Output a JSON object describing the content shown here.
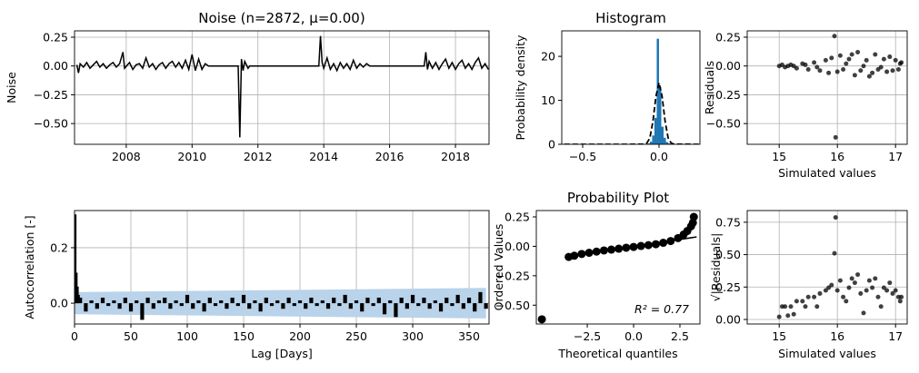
{
  "chart_data": [
    {
      "type": "line",
      "title": "Noise (n=2872, μ=0.00)",
      "ylabel": "Noise",
      "color": "#000000",
      "grid": true,
      "xlim": [
        2006.43,
        2019.02
      ],
      "ylim": [
        -0.68,
        0.305
      ],
      "xticks": [
        2008,
        2010,
        2012,
        2014,
        2016,
        2018
      ],
      "yticks": [
        0.25,
        {
          "value": 0,
          "label": "0.00"
        },
        {
          "value": -0.25,
          "label": "−0.25"
        },
        {
          "value": -0.5,
          "label": "−0.50"
        }
      ],
      "x": [
        2006.5,
        2006.55,
        2006.6,
        2006.7,
        2006.8,
        2006.9,
        2007.0,
        2007.1,
        2007.2,
        2007.3,
        2007.4,
        2007.5,
        2007.6,
        2007.7,
        2007.8,
        2007.9,
        2007.95,
        2008.1,
        2008.2,
        2008.3,
        2008.4,
        2008.5,
        2008.6,
        2008.7,
        2008.8,
        2008.9,
        2009.0,
        2009.1,
        2009.2,
        2009.3,
        2009.4,
        2009.5,
        2009.6,
        2009.7,
        2009.8,
        2009.9,
        2010.0,
        2010.1,
        2010.2,
        2010.3,
        2010.4,
        2010.5,
        2011.4,
        2011.45,
        2011.5,
        2011.55,
        2011.6,
        2011.7,
        2011.75,
        2013.85,
        2013.9,
        2013.95,
        2014.0,
        2014.1,
        2014.2,
        2014.3,
        2014.4,
        2014.5,
        2014.6,
        2014.7,
        2014.8,
        2014.9,
        2015.0,
        2015.1,
        2015.2,
        2015.3,
        2015.4,
        2017.05,
        2017.1,
        2017.15,
        2017.2,
        2017.3,
        2017.4,
        2017.5,
        2017.6,
        2017.7,
        2017.8,
        2017.9,
        2018.0,
        2018.1,
        2018.2,
        2018.3,
        2018.4,
        2018.5,
        2018.6,
        2018.7,
        2018.8,
        2018.9,
        2019.0
      ],
      "values": [
        0.01,
        -0.06,
        0.02,
        -0.01,
        0.03,
        -0.02,
        0.01,
        0.04,
        -0.01,
        0.02,
        -0.02,
        0.01,
        0.03,
        -0.01,
        0.02,
        0.12,
        -0.02,
        0.03,
        -0.03,
        0.01,
        0.02,
        -0.02,
        0.07,
        -0.01,
        0.02,
        -0.03,
        0.01,
        0.03,
        -0.02,
        0.02,
        0.04,
        -0.01,
        0.03,
        -0.02,
        0.05,
        -0.03,
        0.1,
        -0.04,
        0.06,
        -0.03,
        0.02,
        0,
        0,
        -0.62,
        0.06,
        -0.04,
        0.04,
        -0.02,
        0,
        0,
        0.26,
        0.03,
        -0.02,
        0.07,
        -0.03,
        0.02,
        -0.04,
        0.03,
        -0.02,
        0.02,
        -0.03,
        0.05,
        -0.02,
        0.02,
        -0.01,
        0.02,
        0,
        0,
        0.12,
        -0.03,
        0.04,
        -0.02,
        0.03,
        -0.03,
        0.02,
        0.06,
        -0.02,
        0.03,
        -0.03,
        0.02,
        0.05,
        -0.02,
        0.02,
        -0.03,
        0.03,
        0.07,
        -0.02,
        0.02,
        -0.03
      ]
    },
    {
      "type": "histogram",
      "title": "Histogram",
      "ylabel": "Probability density",
      "color": "#1f77b4",
      "grid": false,
      "xlim": [
        -0.637,
        0.268
      ],
      "ylim": [
        0,
        25.8
      ],
      "xticks": [
        {
          "value": -0.5,
          "label": "−0.5"
        },
        {
          "value": 0,
          "label": "0.0"
        }
      ],
      "yticks": [
        0,
        10,
        20
      ],
      "bins": [
        -0.075,
        -0.06,
        -0.045,
        -0.03,
        -0.015,
        0,
        0.015,
        0.03,
        0.045,
        0.06,
        0.075
      ],
      "values": [
        0.2,
        0.6,
        2,
        6,
        24,
        13,
        4,
        1.5,
        0.5,
        0.2
      ],
      "curve": {
        "color": "#000000",
        "x": [
          -0.62,
          -0.2,
          -0.1,
          -0.08,
          -0.06,
          -0.04,
          -0.02,
          0,
          0.02,
          0.04,
          0.06,
          0.08,
          0.1,
          0.26
        ],
        "values": [
          0,
          0,
          0.03,
          0.27,
          1.4,
          5.2,
          10.9,
          14,
          10.9,
          5.2,
          1.4,
          0.27,
          0.03,
          0
        ]
      }
    },
    {
      "type": "scatter",
      "xlabel": "Simulated values",
      "ylabel": "Residuals",
      "color": "#000000",
      "grid": true,
      "xlim": [
        14.45,
        17.2
      ],
      "ylim": [
        -0.68,
        0.305
      ],
      "xticks": [
        15,
        16,
        17
      ],
      "yticks": [
        0.25,
        {
          "value": 0,
          "label": "0.00"
        },
        {
          "value": -0.25,
          "label": "−0.25"
        },
        {
          "value": -0.5,
          "label": "−0.50"
        }
      ],
      "x": [
        15.0,
        15.05,
        15.1,
        15.15,
        15.2,
        15.3,
        15.4,
        15.5,
        15.6,
        15.7,
        15.8,
        15.85,
        15.9,
        15.95,
        15.97,
        16.0,
        16.05,
        16.1,
        16.2,
        16.3,
        16.35,
        16.4,
        16.5,
        16.6,
        16.65,
        16.7,
        16.8,
        16.85,
        16.9,
        16.95,
        17.0,
        17.05,
        17.1,
        15.25,
        15.45,
        15.65,
        16.15,
        16.45,
        16.75,
        17.08,
        16.25,
        16.55
      ],
      "values": [
        0,
        0.01,
        -0.01,
        0,
        0.01,
        -0.02,
        0.02,
        -0.03,
        0.03,
        -0.04,
        0.05,
        -0.06,
        0.07,
        0.26,
        -0.62,
        -0.05,
        0.09,
        -0.03,
        0.06,
        -0.08,
        0.12,
        -0.04,
        0.05,
        -0.06,
        0.1,
        -0.03,
        0.06,
        -0.05,
        0.08,
        -0.04,
        0.05,
        -0.03,
        0.03,
        0,
        0.01,
        -0.01,
        0.02,
        0,
        -0.01,
        0.02,
        0.1,
        -0.09
      ]
    },
    {
      "type": "bar",
      "xlabel": "Lag [Days]",
      "ylabel": "Autocorrelation [-]",
      "color": "#000000",
      "grid": true,
      "xlim": [
        0,
        367.7
      ],
      "ylim": [
        -0.075,
        0.334
      ],
      "xticks": [
        0,
        50,
        100,
        150,
        200,
        250,
        300,
        350
      ],
      "yticks": [
        {
          "value": 0,
          "label": "0.0"
        },
        0.2
      ],
      "band": {
        "color": "#b9d3ea",
        "x": [
          0,
          365
        ],
        "upper": [
          0.04,
          0.055
        ],
        "lower": [
          -0.04,
          -0.055
        ]
      },
      "x": [
        0,
        1,
        2,
        3,
        5,
        10,
        15,
        20,
        25,
        30,
        35,
        40,
        45,
        50,
        55,
        60,
        65,
        70,
        75,
        80,
        85,
        90,
        95,
        100,
        105,
        110,
        115,
        120,
        125,
        130,
        135,
        140,
        145,
        150,
        155,
        160,
        165,
        170,
        175,
        180,
        185,
        190,
        195,
        200,
        205,
        210,
        215,
        220,
        225,
        230,
        235,
        240,
        245,
        250,
        255,
        260,
        265,
        270,
        275,
        280,
        285,
        290,
        295,
        300,
        305,
        310,
        315,
        320,
        325,
        330,
        335,
        340,
        345,
        350,
        355,
        360,
        365
      ],
      "values": [
        0.32,
        0.11,
        0.06,
        0.03,
        0.02,
        -0.03,
        0.01,
        -0.02,
        0.02,
        -0.01,
        0.01,
        -0.02,
        0.02,
        -0.03,
        0.01,
        -0.06,
        0.02,
        -0.02,
        0.01,
        0.02,
        -0.02,
        0.01,
        -0.01,
        0.03,
        -0.02,
        0.01,
        -0.03,
        0.02,
        -0.01,
        0.01,
        -0.02,
        0.02,
        -0.01,
        0.03,
        -0.02,
        0.01,
        -0.03,
        0.02,
        -0.01,
        0.01,
        -0.02,
        0.02,
        -0.01,
        0.01,
        -0.02,
        0.02,
        -0.01,
        0.01,
        -0.02,
        0.02,
        -0.01,
        0.03,
        -0.02,
        0.01,
        -0.03,
        0.02,
        -0.01,
        0.02,
        -0.04,
        0.01,
        -0.05,
        0.02,
        -0.02,
        0.03,
        -0.01,
        0.02,
        -0.02,
        0.01,
        -0.03,
        0.02,
        -0.01,
        0.03,
        -0.02,
        0.02,
        -0.03,
        0.04,
        -0.02
      ]
    },
    {
      "type": "scatter",
      "title": "Probability Plot",
      "xlabel": "Theoretical quantiles",
      "ylabel": "Ordered Values",
      "color": "#000000",
      "grid": false,
      "annotation": "R² = 0.77",
      "xlim": [
        -5.25,
        3.58
      ],
      "ylim": [
        -0.66,
        0.304
      ],
      "xticks": [
        {
          "value": -2.5,
          "label": "−2.5"
        },
        {
          "value": 0,
          "label": "0.0"
        },
        2.5
      ],
      "yticks": [
        0.25,
        {
          "value": 0,
          "label": "0.00"
        },
        {
          "value": -0.25,
          "label": "−0.25"
        },
        {
          "value": -0.5,
          "label": "−0.50"
        }
      ],
      "x": [
        -4.95,
        -3.5,
        -3.2,
        -2.8,
        -2.4,
        -2.0,
        -1.6,
        -1.2,
        -0.8,
        -0.4,
        0,
        0.4,
        0.8,
        1.2,
        1.6,
        2.0,
        2.4,
        2.7,
        2.9,
        3.1,
        3.2,
        3.25
      ],
      "values": [
        -0.62,
        -0.09,
        -0.08,
        -0.065,
        -0.055,
        -0.045,
        -0.035,
        -0.028,
        -0.02,
        -0.012,
        -0.005,
        0.003,
        0.01,
        0.018,
        0.03,
        0.045,
        0.07,
        0.1,
        0.13,
        0.17,
        0.2,
        0.25
      ],
      "fit": {
        "color": "#000000",
        "x": [
          -3.5,
          3.4
        ],
        "values": [
          -0.085,
          0.08
        ]
      }
    },
    {
      "type": "scatter",
      "xlabel": "Simulated values",
      "ylabel": "√|Residuals|",
      "color": "#000000",
      "grid": true,
      "xlim": [
        14.45,
        17.2
      ],
      "ylim": [
        -0.035,
        0.84
      ],
      "xticks": [
        15,
        16,
        17
      ],
      "yticks": [
        {
          "value": 0,
          "label": "0.00"
        },
        0.25,
        {
          "value": 0.5,
          "label": "0.50"
        },
        0.75
      ],
      "x": [
        15.0,
        15.05,
        15.1,
        15.15,
        15.2,
        15.3,
        15.4,
        15.5,
        15.6,
        15.7,
        15.8,
        15.85,
        15.9,
        15.95,
        15.97,
        16.0,
        16.05,
        16.1,
        16.2,
        16.3,
        16.35,
        16.4,
        16.5,
        16.6,
        16.65,
        16.7,
        16.8,
        16.85,
        16.9,
        16.95,
        17.0,
        17.05,
        17.1,
        15.25,
        15.45,
        15.65,
        16.15,
        16.45,
        16.75,
        17.08,
        16.25,
        16.55
      ],
      "values": [
        0.02,
        0.1,
        0.1,
        0.03,
        0.1,
        0.141,
        0.141,
        0.173,
        0.173,
        0.2,
        0.224,
        0.245,
        0.265,
        0.51,
        0.787,
        0.224,
        0.3,
        0.173,
        0.245,
        0.283,
        0.346,
        0.2,
        0.224,
        0.245,
        0.316,
        0.173,
        0.245,
        0.224,
        0.283,
        0.2,
        0.224,
        0.173,
        0.173,
        0.04,
        0.1,
        0.1,
        0.141,
        0.05,
        0.1,
        0.141,
        0.316,
        0.3
      ]
    }
  ]
}
